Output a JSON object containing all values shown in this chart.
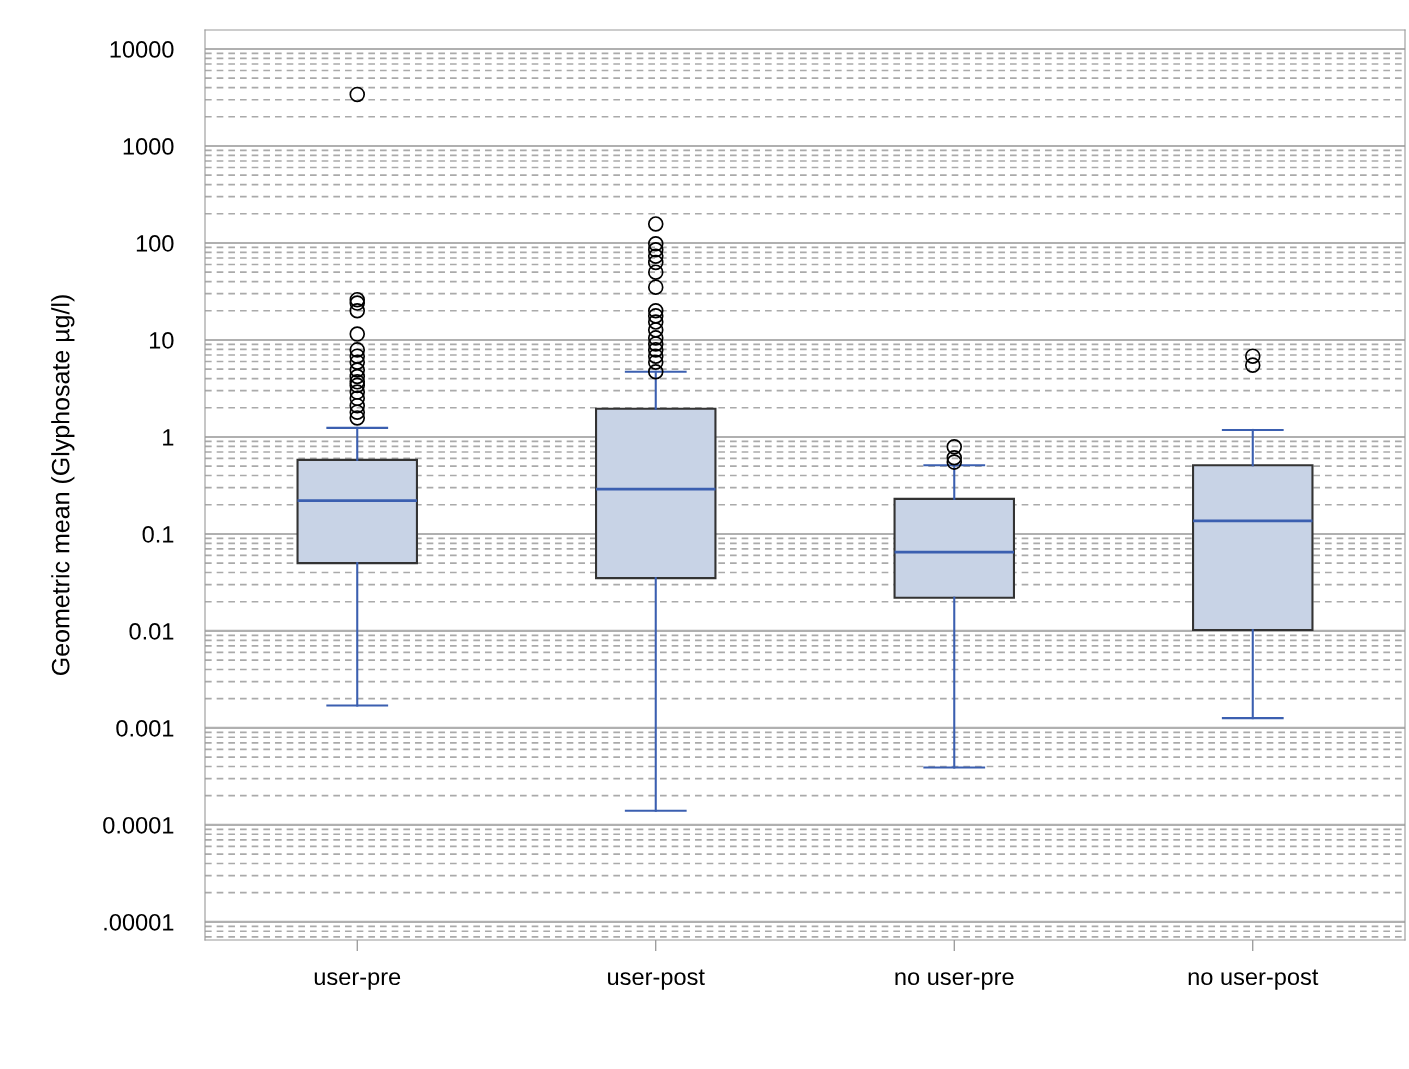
{
  "chart_data": {
    "type": "box",
    "ylabel": "Geometric mean (Glyphosate µg/l)",
    "categories": [
      "user-pre",
      "user-post",
      "no user-pre",
      "no user-post"
    ],
    "boxes": [
      {
        "low": 0.0017,
        "q1": 0.05,
        "median": 0.22,
        "q3": 0.58,
        "high": 1.24,
        "outliers": [
          3400,
          26,
          24,
          20,
          11.5,
          7.9,
          6.8,
          5.9,
          4.9,
          4.2,
          3.7,
          3.4,
          2.9,
          2.5,
          2.1,
          1.8,
          1.57
        ]
      },
      {
        "low": 0.00014,
        "q1": 0.035,
        "median": 0.29,
        "q3": 1.95,
        "high": 4.7,
        "outliers": [
          157,
          98,
          85,
          73,
          63,
          50,
          35,
          20,
          17.7,
          15.3,
          12.7,
          10.5,
          9.1,
          7.9,
          6.8,
          5.9,
          4.7
        ]
      },
      {
        "low": 0.00039,
        "q1": 0.022,
        "median": 0.065,
        "q3": 0.23,
        "high": 0.51,
        "outliers": [
          0.79,
          0.61,
          0.55
        ]
      },
      {
        "low": 0.00126,
        "q1": 0.0102,
        "median": 0.136,
        "q3": 0.51,
        "high": 1.18,
        "outliers": [
          6.8,
          5.5
        ]
      }
    ],
    "color": "#c8d3e6",
    "log": "y",
    "ylim": [
      6.5e-06,
      15700
    ],
    "yticks": [
      {
        "value": 1e-05,
        "label": ".00001"
      },
      {
        "value": 0.0001,
        "label": "0.0001"
      },
      {
        "value": 0.001,
        "label": "0.001"
      },
      {
        "value": 0.01,
        "label": "0.01"
      },
      {
        "value": 0.1,
        "label": "0.1"
      },
      1,
      10,
      100,
      1000,
      10000
    ],
    "grid": "y",
    "marker": "circle"
  }
}
